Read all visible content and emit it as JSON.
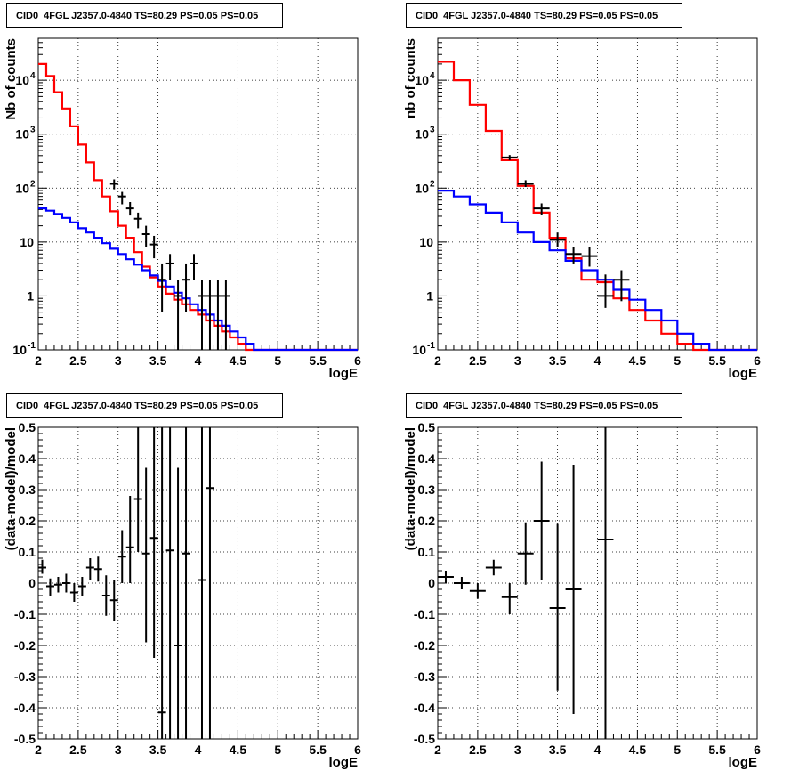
{
  "chart_data": [
    {
      "type": "line",
      "title": "CID0_4FGL J2357.0-4840 TS=80.29 PS=0.05 PS=0.05",
      "xlabel": "logE",
      "ylabel": "Nb of counts",
      "xlim": [
        2,
        6
      ],
      "ylim": [
        0.1,
        60000
      ],
      "yscale": "log",
      "grid": true,
      "series": [
        {
          "color": "#ff0000",
          "style": "step",
          "edges": [
            2.0,
            2.1,
            2.2,
            2.3,
            2.4,
            2.5,
            2.6,
            2.7,
            2.8,
            2.9,
            3.0,
            3.1,
            3.2,
            3.3,
            3.4,
            3.5,
            3.6,
            3.7,
            3.8,
            3.9,
            4.0,
            4.1,
            4.2,
            4.3,
            4.4,
            4.5,
            4.6,
            4.7,
            4.8,
            4.9,
            5.0,
            5.1,
            5.2,
            5.3,
            5.4,
            5.5,
            5.6,
            5.7,
            5.8,
            5.9,
            6.0
          ],
          "values": [
            20000,
            12000,
            6000,
            3000,
            1400,
            640,
            300,
            140,
            70,
            37,
            20,
            12,
            6.5,
            3.5,
            2.2,
            1.5,
            1.1,
            0.85,
            0.7,
            0.55,
            0.45,
            0.35,
            0.28,
            0.22,
            0.17,
            0.13,
            0.1,
            0.1,
            0.1,
            0.1,
            0.1,
            0.1,
            0.1,
            0.1,
            0.1,
            0.1,
            0.1,
            0.1,
            0.1,
            0.1
          ]
        },
        {
          "color": "#0000ff",
          "style": "step",
          "edges": [
            2.0,
            2.1,
            2.2,
            2.3,
            2.4,
            2.5,
            2.6,
            2.7,
            2.8,
            2.9,
            3.0,
            3.1,
            3.2,
            3.3,
            3.4,
            3.5,
            3.6,
            3.7,
            3.8,
            3.9,
            4.0,
            4.1,
            4.2,
            4.3,
            4.4,
            4.5,
            4.6,
            4.7,
            4.8,
            4.9,
            5.0,
            5.1,
            5.2,
            5.3,
            5.4,
            5.5,
            5.6,
            5.7,
            5.8,
            5.9,
            6.0
          ],
          "values": [
            42,
            38,
            33,
            28,
            23,
            18,
            15,
            12,
            9.5,
            7.5,
            6.0,
            4.8,
            3.8,
            3.0,
            2.4,
            1.9,
            1.5,
            1.15,
            0.9,
            0.7,
            0.55,
            0.45,
            0.35,
            0.28,
            0.22,
            0.17,
            0.13,
            0.1,
            0.1,
            0.1,
            0.1,
            0.1,
            0.1,
            0.1,
            0.1,
            0.1,
            0.1,
            0.1,
            0.1,
            0.1
          ]
        },
        {
          "color": "#000000",
          "style": "points",
          "x": [
            2.95,
            3.05,
            3.15,
            3.25,
            3.35,
            3.45,
            3.55,
            3.65,
            3.75,
            3.85,
            3.95,
            4.05,
            4.15,
            4.25,
            4.35
          ],
          "xerr": 0.05,
          "y": [
            120,
            70,
            42,
            27,
            14,
            9,
            2,
            4,
            1,
            2,
            4,
            1,
            1,
            1,
            1
          ],
          "ylo": [
            95,
            50,
            31,
            18,
            8,
            5,
            0.5,
            2,
            0.1,
            0.5,
            2,
            0.1,
            0.1,
            0.1,
            0.1
          ],
          "yhi": [
            145,
            85,
            55,
            35,
            20,
            13,
            4,
            6,
            2,
            4,
            6,
            2,
            2,
            2,
            2
          ]
        }
      ]
    },
    {
      "type": "line",
      "title": "CID0_4FGL J2357.0-4840 TS=80.29 PS=0.05 PS=0.05",
      "xlabel": "logE",
      "ylabel": "nb of counts",
      "xlim": [
        2,
        6
      ],
      "ylim": [
        0.1,
        60000
      ],
      "yscale": "log",
      "grid": true,
      "series": [
        {
          "color": "#ff0000",
          "style": "step",
          "edges": [
            2.0,
            2.2,
            2.4,
            2.6,
            2.8,
            3.0,
            3.2,
            3.4,
            3.6,
            3.8,
            4.0,
            4.2,
            4.4,
            4.6,
            4.8,
            5.0,
            5.2,
            5.4,
            5.6,
            5.8,
            6.0
          ],
          "values": [
            22000,
            10000,
            3500,
            1150,
            330,
            110,
            35,
            12,
            5,
            2,
            1.8,
            0.9,
            0.55,
            0.35,
            0.2,
            0.13,
            0.1,
            0.1,
            0.1,
            0.1
          ]
        },
        {
          "color": "#0000ff",
          "style": "step",
          "edges": [
            2.0,
            2.2,
            2.4,
            2.6,
            2.8,
            3.0,
            3.2,
            3.4,
            3.6,
            3.8,
            4.0,
            4.2,
            4.4,
            4.6,
            4.8,
            5.0,
            5.2,
            5.4,
            5.6,
            5.8,
            6.0
          ],
          "values": [
            90,
            70,
            50,
            35,
            23,
            15,
            10,
            7,
            4.5,
            3,
            2,
            1.3,
            0.85,
            0.55,
            0.35,
            0.2,
            0.13,
            0.1,
            0.1,
            0.1
          ]
        },
        {
          "color": "#000000",
          "style": "points",
          "x": [
            2.9,
            3.1,
            3.3,
            3.5,
            3.7,
            3.9,
            4.1,
            4.3
          ],
          "xerr": 0.1,
          "y": [
            370,
            120,
            42,
            11,
            6,
            5.5,
            1,
            2
          ],
          "ylo": [
            330,
            105,
            32,
            8,
            4,
            3.5,
            0.6,
            0.8
          ],
          "yhi": [
            410,
            140,
            52,
            15,
            8,
            8,
            2.5,
            3
          ]
        }
      ]
    },
    {
      "type": "scatter",
      "title": "CID0_4FGL J2357.0-4840 TS=80.29 PS=0.05 PS=0.05",
      "xlabel": "logE",
      "ylabel": "(data-model)/model",
      "xlim": [
        2,
        6
      ],
      "ylim": [
        -0.5,
        0.5
      ],
      "grid": true,
      "series": [
        {
          "color": "#000000",
          "style": "points",
          "x": [
            2.05,
            2.15,
            2.25,
            2.35,
            2.45,
            2.55,
            2.65,
            2.75,
            2.85,
            2.95,
            3.05,
            3.15,
            3.25,
            3.35,
            3.45,
            3.55,
            3.65,
            3.75,
            3.85,
            4.05,
            4.15
          ],
          "xerr": 0.05,
          "y": [
            0.05,
            -0.01,
            -0.005,
            0.0,
            -0.03,
            -0.01,
            0.05,
            0.045,
            -0.04,
            -0.055,
            0.085,
            0.115,
            0.27,
            0.095,
            0.145,
            -0.415,
            0.105,
            -0.2,
            0.095,
            0.01,
            0.305
          ],
          "ylo": [
            0.03,
            -0.04,
            -0.03,
            -0.03,
            -0.06,
            -0.04,
            0.01,
            0.005,
            -0.105,
            -0.12,
            0.0,
            0.0,
            0.1,
            -0.19,
            -0.24,
            -0.5,
            -0.5,
            -0.5,
            -0.5,
            -0.5,
            -0.5
          ],
          "yhi": [
            0.075,
            0.015,
            0.02,
            0.03,
            0.0,
            0.02,
            0.08,
            0.085,
            0.025,
            0.01,
            0.17,
            0.28,
            0.5,
            0.37,
            0.5,
            0.5,
            0.5,
            0.37,
            0.5,
            0.5,
            0.5
          ]
        }
      ]
    },
    {
      "type": "scatter",
      "title": "CID0_4FGL J2357.0-4840 TS=80.29 PS=0.05 PS=0.05",
      "xlabel": "logE",
      "ylabel": "(data-model)/model",
      "xlim": [
        2,
        6
      ],
      "ylim": [
        -0.5,
        0.5
      ],
      "grid": true,
      "series": [
        {
          "color": "#000000",
          "style": "points",
          "x": [
            2.1,
            2.3,
            2.5,
            2.7,
            2.9,
            3.1,
            3.3,
            3.5,
            3.7,
            4.1
          ],
          "xerr": 0.1,
          "y": [
            0.02,
            0.0,
            -0.025,
            0.05,
            -0.045,
            0.095,
            0.2,
            -0.08,
            -0.02,
            0.14
          ],
          "ylo": [
            0.0,
            -0.02,
            -0.05,
            0.025,
            -0.1,
            -0.005,
            0.01,
            -0.345,
            -0.42,
            -0.5
          ],
          "yhi": [
            0.04,
            0.02,
            0.0,
            0.075,
            0.0,
            0.195,
            0.39,
            0.19,
            0.38,
            0.5
          ]
        }
      ]
    }
  ]
}
